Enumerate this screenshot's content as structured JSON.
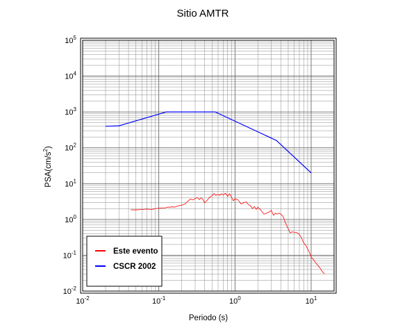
{
  "chart_data": {
    "type": "line",
    "title": "Sitio AMTR",
    "xlabel": "Periodo (s)",
    "ylabel": "PSA(cm/s²)",
    "xscale": "log",
    "yscale": "log",
    "xlim": [
      0.01,
      20
    ],
    "ylim": [
      0.01,
      100000
    ],
    "grid": true,
    "legend_position": "bottom-left",
    "x_ticks": [
      {
        "base": "10",
        "exp": "-2"
      },
      {
        "base": "10",
        "exp": "-1"
      },
      {
        "base": "10",
        "exp": "0"
      },
      {
        "base": "10",
        "exp": "1"
      }
    ],
    "y_ticks": [
      {
        "base": "10",
        "exp": "-2"
      },
      {
        "base": "10",
        "exp": "-1"
      },
      {
        "base": "10",
        "exp": "0"
      },
      {
        "base": "10",
        "exp": "1"
      },
      {
        "base": "10",
        "exp": "2"
      },
      {
        "base": "10",
        "exp": "3"
      },
      {
        "base": "10",
        "exp": "4"
      },
      {
        "base": "10",
        "exp": "5"
      }
    ],
    "series": [
      {
        "name": "Este evento",
        "color": "#ff0000",
        "x": [
          0.043,
          0.05,
          0.06,
          0.07,
          0.08,
          0.09,
          0.1,
          0.11,
          0.12,
          0.13,
          0.14,
          0.15,
          0.16,
          0.17,
          0.18,
          0.2,
          0.22,
          0.24,
          0.26,
          0.28,
          0.3,
          0.32,
          0.34,
          0.36,
          0.38,
          0.4,
          0.43,
          0.46,
          0.5,
          0.53,
          0.56,
          0.6,
          0.63,
          0.66,
          0.7,
          0.75,
          0.8,
          0.85,
          0.9,
          0.95,
          1.0,
          1.1,
          1.2,
          1.3,
          1.4,
          1.5,
          1.6,
          1.7,
          1.8,
          1.9,
          2.0,
          2.2,
          2.4,
          2.6,
          2.8,
          3.0,
          3.2,
          3.4,
          3.6,
          3.8,
          4.0,
          4.3,
          4.6,
          5.0,
          5.3,
          5.6,
          6.0,
          6.5,
          7.0,
          7.5,
          8.0,
          8.5,
          9.0,
          9.5,
          10.0,
          11.0,
          12.0,
          13.0,
          14.0,
          15.0
        ],
        "y": [
          1.85,
          1.85,
          1.9,
          1.95,
          1.9,
          2.0,
          2.05,
          2.1,
          2.1,
          2.2,
          2.2,
          2.25,
          2.2,
          2.3,
          2.4,
          2.5,
          2.7,
          3.2,
          3.7,
          3.5,
          3.8,
          4.1,
          3.6,
          4.0,
          3.6,
          2.9,
          3.4,
          4.1,
          4.6,
          5.3,
          4.7,
          5.0,
          4.7,
          5.2,
          4.8,
          5.4,
          4.4,
          5.2,
          4.2,
          3.3,
          3.8,
          3.5,
          2.7,
          2.9,
          3.1,
          2.6,
          2.4,
          2.0,
          2.3,
          1.9,
          2.2,
          1.8,
          1.4,
          1.5,
          1.6,
          1.8,
          1.3,
          1.5,
          1.4,
          1.5,
          1.4,
          1.2,
          0.8,
          0.55,
          0.42,
          0.45,
          0.44,
          0.43,
          0.38,
          0.3,
          0.22,
          0.19,
          0.15,
          0.12,
          0.09,
          0.07,
          0.055,
          0.045,
          0.035,
          0.03
        ]
      },
      {
        "name": "CSCR 2002",
        "color": "#0000ff",
        "x": [
          0.02,
          0.03,
          0.125,
          0.55,
          3.5,
          10.0
        ],
        "y": [
          400,
          410,
          1000,
          1000,
          160,
          20
        ]
      }
    ]
  }
}
